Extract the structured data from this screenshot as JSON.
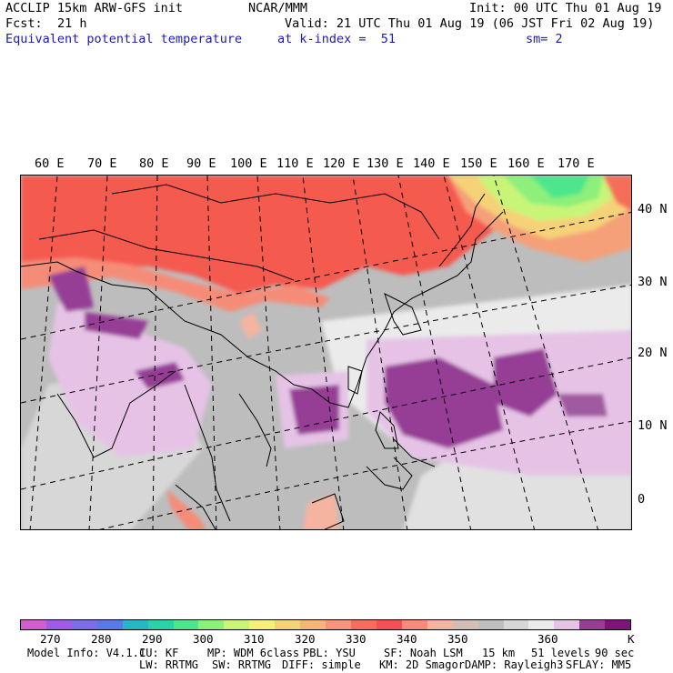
{
  "header": {
    "model": "ACCLIP 15km ARW-GFS init",
    "org": "NCAR/MMM",
    "init": "Init: 00 UTC Thu 01 Aug 19",
    "fcst_label": "Fcst:",
    "fcst_value": "21 h",
    "valid": "Valid: 21 UTC Thu 01 Aug 19 (06 JST Fri 02 Aug 19)",
    "field": "Equivalent potential temperature",
    "level": "at k-index =  51",
    "smoothing": "sm= 2"
  },
  "map": {
    "lon_labels": [
      "60 E",
      "70 E",
      "80 E",
      "90 E",
      "100 E",
      "110 E",
      "120 E",
      "130 E",
      "140 E",
      "150 E",
      "160 E",
      "170 E"
    ],
    "lat_labels": [
      "40 N",
      "30 N",
      "20 N",
      "10 N",
      "0"
    ]
  },
  "colorbar": {
    "colors": [
      "#d25cd2",
      "#a05ae6",
      "#7c6ee6",
      "#5a78e6",
      "#2ab4c8",
      "#2ad2aa",
      "#4ee68c",
      "#8cf07a",
      "#c8f578",
      "#f5f07a",
      "#f5d278",
      "#f5b478",
      "#f59678",
      "#f56e5a",
      "#f55050",
      "#f58c78",
      "#f5b4a0",
      "#d2beb4",
      "#bebebe",
      "#d7d7d7",
      "#ebebeb",
      "#e6c3e6",
      "#963c96",
      "#7d147d"
    ],
    "labels": [
      "270",
      "280",
      "290",
      "300",
      "310",
      "320",
      "330",
      "340",
      "350",
      "360"
    ],
    "unit": "K"
  },
  "model_info": {
    "line1": [
      "Model Info: V4.1.1",
      "CU: KF",
      "MP: WDM 6class",
      "PBL: YSU",
      "SF: Noah LSM",
      "15 km",
      "51 levels",
      "90 sec"
    ],
    "line2": [
      "LW: RRTMG",
      "SW: RRTMG",
      "DIFF: simple",
      "KM: 2D Smagor",
      "DAMP: Rayleigh3",
      "SFLAY: MM5"
    ]
  }
}
